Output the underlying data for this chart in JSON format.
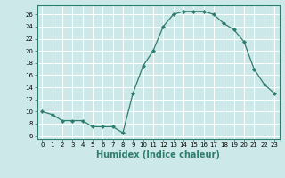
{
  "x": [
    0,
    1,
    2,
    3,
    4,
    5,
    6,
    7,
    8,
    9,
    10,
    11,
    12,
    13,
    14,
    15,
    16,
    17,
    18,
    19,
    20,
    21,
    22,
    23
  ],
  "y": [
    10,
    9.5,
    8.5,
    8.5,
    8.5,
    7.5,
    7.5,
    7.5,
    6.5,
    13,
    17.5,
    20,
    24,
    26,
    26.5,
    26.5,
    26.5,
    26,
    24.5,
    23.5,
    21.5,
    17,
    14.5,
    13
  ],
  "line_color": "#2e7d6e",
  "marker": "D",
  "marker_size": 2.0,
  "bg_color": "#cde8e8",
  "grid_color": "#ffffff",
  "xlabel": "Humidex (Indice chaleur)",
  "xlabel_fontsize": 7,
  "tick_fontsize": 5,
  "ylabel_ticks": [
    6,
    8,
    10,
    12,
    14,
    16,
    18,
    20,
    22,
    24,
    26
  ],
  "ylim": [
    5.5,
    27.5
  ],
  "xlim": [
    -0.5,
    23.5
  ],
  "xticks": [
    0,
    1,
    2,
    3,
    4,
    5,
    6,
    7,
    8,
    9,
    10,
    11,
    12,
    13,
    14,
    15,
    16,
    17,
    18,
    19,
    20,
    21,
    22,
    23
  ]
}
